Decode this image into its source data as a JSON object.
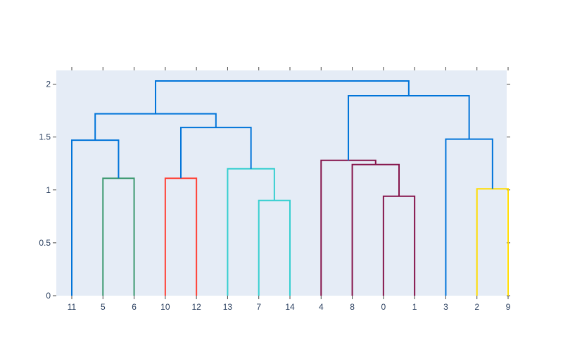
{
  "chart_data": {
    "type": "dendrogram",
    "title": "",
    "xlabel": "",
    "ylabel": "",
    "ylim": [
      0,
      2.13
    ],
    "yticks": [
      {
        "value": 0,
        "label": "0"
      },
      {
        "value": 0.5,
        "label": "0.5"
      },
      {
        "value": 1,
        "label": "1"
      },
      {
        "value": 1.5,
        "label": "1.5"
      },
      {
        "value": 2,
        "label": "2"
      }
    ],
    "leaves": [
      "11",
      "5",
      "6",
      "10",
      "12",
      "13",
      "7",
      "14",
      "4",
      "8",
      "0",
      "1",
      "3",
      "2",
      "9"
    ],
    "links": [
      {
        "left": "5",
        "right": "6",
        "height": 1.11,
        "color": "#3d9970"
      },
      {
        "left": "10",
        "right": "12",
        "height": 1.11,
        "color": "#ff4136"
      },
      {
        "left": "7",
        "right": "14",
        "height": 0.9,
        "color": "#35cfd0"
      },
      {
        "left": "13",
        "right": "7+14",
        "height": 1.2,
        "color": "#35cfd0"
      },
      {
        "left": "0",
        "right": "1",
        "height": 0.94,
        "color": "#85144b"
      },
      {
        "left": "8",
        "right": "0+1",
        "height": 1.24,
        "color": "#85144b"
      },
      {
        "left": "4",
        "right": "8+0+1",
        "height": 1.28,
        "color": "#85144b"
      },
      {
        "left": "2",
        "right": "9",
        "height": 1.01,
        "color": "#ffdc00"
      },
      {
        "left": "11",
        "right": "5+6",
        "height": 1.47,
        "color": "#0074d9"
      },
      {
        "left": "10+12",
        "right": "13+7+14",
        "height": 1.59,
        "color": "#0074d9"
      },
      {
        "left": "11+5+6",
        "right": "10+12+13+7+14",
        "height": 1.72,
        "color": "#0074d9"
      },
      {
        "left": "3",
        "right": "2+9",
        "height": 1.48,
        "color": "#0074d9"
      },
      {
        "left": "4+8+0+1",
        "right": "3+2+9",
        "height": 1.89,
        "color": "#0074d9"
      },
      {
        "left": "left-cluster",
        "right": "right-cluster",
        "height": 2.03,
        "color": "#0074d9"
      }
    ],
    "colors": {
      "plot_background": "#e5ecf6",
      "axis_text": "#2a3f5f",
      "tick": "#444444"
    },
    "grid": false,
    "legend": "none"
  }
}
